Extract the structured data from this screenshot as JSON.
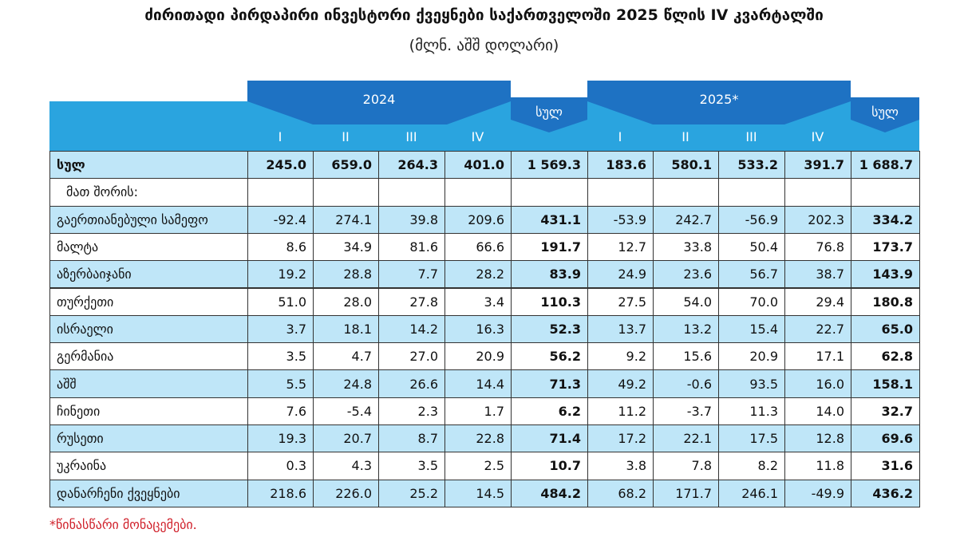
{
  "title": "ძირითადი პირდაპირი ინვესტორი ქვეყნები საქართველოში 2025 წლის IV კვარტალში",
  "subtitle": "(მლნ. აშშ დოლარი)",
  "table": {
    "header": {
      "year_1": "2024",
      "total_1": "სულ",
      "year_2": "2025*",
      "total_2": "სულ",
      "quarters_1": [
        "I",
        "II",
        "III",
        "IV"
      ],
      "quarters_2": [
        "I",
        "II",
        "III",
        "IV"
      ]
    },
    "rows": [
      [
        "სულ",
        "245.0",
        "659.0",
        "264.3",
        "401.0",
        "1 569.3",
        "183.6",
        "580.1",
        "533.2",
        "391.7",
        "1 688.7"
      ],
      [
        "მათ შორის:"
      ],
      [
        "გაერთიანებული სამეფო",
        "-92.4",
        "274.1",
        "39.8",
        "209.6",
        "431.1",
        "-53.9",
        "242.7",
        "-56.9",
        "202.3",
        "334.2"
      ],
      [
        "მალტა",
        "8.6",
        "34.9",
        "81.6",
        "66.6",
        "191.7",
        "12.7",
        "33.8",
        "50.4",
        "76.8",
        "173.7"
      ],
      [
        "აზერბაიჯანი",
        "19.2",
        "28.8",
        "7.7",
        "28.2",
        "83.9",
        "24.9",
        "23.6",
        "56.7",
        "38.7",
        "143.9"
      ],
      [
        "თურქეთი",
        "51.0",
        "28.0",
        "27.8",
        "3.4",
        "110.3",
        "27.5",
        "54.0",
        "70.0",
        "29.4",
        "180.8"
      ],
      [
        "ისრაელი",
        "3.7",
        "18.1",
        "14.2",
        "16.3",
        "52.3",
        "13.7",
        "13.2",
        "15.4",
        "22.7",
        "65.0"
      ],
      [
        "გერმანია",
        "3.5",
        "4.7",
        "27.0",
        "20.9",
        "56.2",
        "9.2",
        "15.6",
        "20.9",
        "17.1",
        "62.8"
      ],
      [
        "აშშ",
        "5.5",
        "24.8",
        "26.6",
        "14.4",
        "71.3",
        "49.2",
        "-0.6",
        "93.5",
        "16.0",
        "158.1"
      ],
      [
        "ჩინეთი",
        "7.6",
        "-5.4",
        "2.3",
        "1.7",
        "6.2",
        "11.2",
        "-3.7",
        "11.3",
        "14.0",
        "32.7"
      ],
      [
        "რუსეთი",
        "19.3",
        "20.7",
        "8.7",
        "22.8",
        "71.4",
        "17.2",
        "22.1",
        "17.5",
        "12.8",
        "69.6"
      ],
      [
        "უკრაინა",
        "0.3",
        "4.3",
        "3.5",
        "2.5",
        "10.7",
        "3.8",
        "7.8",
        "8.2",
        "11.8",
        "31.6"
      ],
      [
        "დანარჩენი ქვეყნები",
        "218.6",
        "226.0",
        "25.2",
        "14.5",
        "484.2",
        "68.2",
        "171.7",
        "246.1",
        "-49.9",
        "436.2"
      ]
    ]
  },
  "footnote": "*წინასწარი მონაცემები."
}
